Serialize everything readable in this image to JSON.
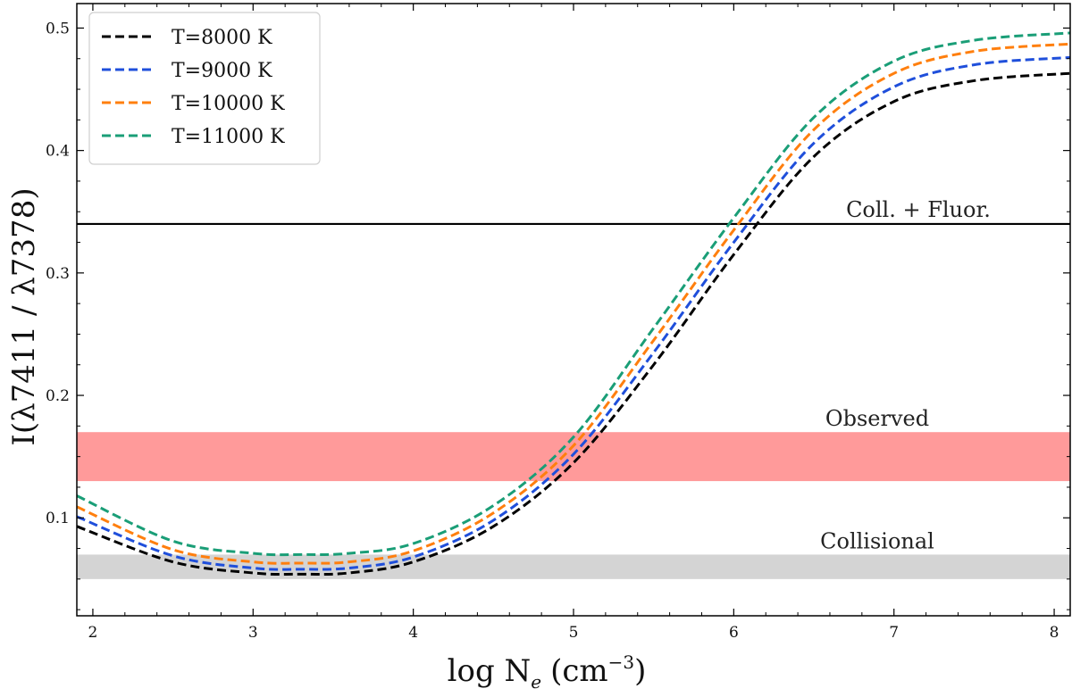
{
  "chart_data": {
    "type": "line",
    "title": "",
    "xlabel_main": "log N",
    "xlabel_sub": "e",
    "xlabel_unit": "(cm",
    "xlabel_sup": "−3",
    "xlabel_close": ")",
    "ylabel": "I(λ7411 / λ7378)",
    "xlim": [
      1.9,
      8.1
    ],
    "ylim": [
      0.02,
      0.52
    ],
    "xticks": [
      2,
      3,
      4,
      5,
      6,
      7,
      8
    ],
    "yticks": [
      0.1,
      0.2,
      0.3,
      0.4,
      0.5
    ],
    "legend_position": "top-left",
    "series": [
      {
        "name": "T=8000 K",
        "color": "#000000",
        "x": [
          1.9,
          2.5,
          3.0,
          3.3,
          3.6,
          4.0,
          4.5,
          5.0,
          5.5,
          6.0,
          6.5,
          7.0,
          7.5,
          8.1
        ],
        "y": [
          0.093,
          0.064,
          0.055,
          0.054,
          0.055,
          0.064,
          0.093,
          0.145,
          0.225,
          0.315,
          0.395,
          0.44,
          0.457,
          0.463
        ]
      },
      {
        "name": "T=9000 K",
        "color": "#1f4fdb",
        "x": [
          1.9,
          2.5,
          3.0,
          3.3,
          3.6,
          4.0,
          4.5,
          5.0,
          5.5,
          6.0,
          6.5,
          7.0,
          7.5,
          8.1
        ],
        "y": [
          0.101,
          0.069,
          0.059,
          0.058,
          0.059,
          0.068,
          0.098,
          0.152,
          0.235,
          0.325,
          0.406,
          0.452,
          0.47,
          0.476
        ]
      },
      {
        "name": "T=10000 K",
        "color": "#ff7f0e",
        "x": [
          1.9,
          2.5,
          3.0,
          3.3,
          3.6,
          4.0,
          4.5,
          5.0,
          5.5,
          6.0,
          6.5,
          7.0,
          7.5,
          8.1
        ],
        "y": [
          0.109,
          0.074,
          0.064,
          0.063,
          0.064,
          0.073,
          0.104,
          0.159,
          0.245,
          0.335,
          0.417,
          0.463,
          0.481,
          0.487
        ]
      },
      {
        "name": "T=11000 K",
        "color": "#1a9e77",
        "x": [
          1.9,
          2.5,
          3.0,
          3.3,
          3.6,
          4.0,
          4.5,
          5.0,
          5.5,
          6.0,
          6.5,
          7.0,
          7.5,
          8.1
        ],
        "y": [
          0.118,
          0.081,
          0.071,
          0.07,
          0.071,
          0.079,
          0.11,
          0.166,
          0.255,
          0.345,
          0.427,
          0.473,
          0.49,
          0.496
        ]
      }
    ],
    "hline": {
      "y": 0.34,
      "label": "Coll. + Fluor.",
      "color": "#000000"
    },
    "bands": [
      {
        "label": "Observed",
        "y0": 0.13,
        "y1": 0.17,
        "color": "#ff9a9a"
      },
      {
        "label": "Collisional",
        "y0": 0.05,
        "y1": 0.07,
        "color": "#d4d4d4"
      }
    ]
  }
}
